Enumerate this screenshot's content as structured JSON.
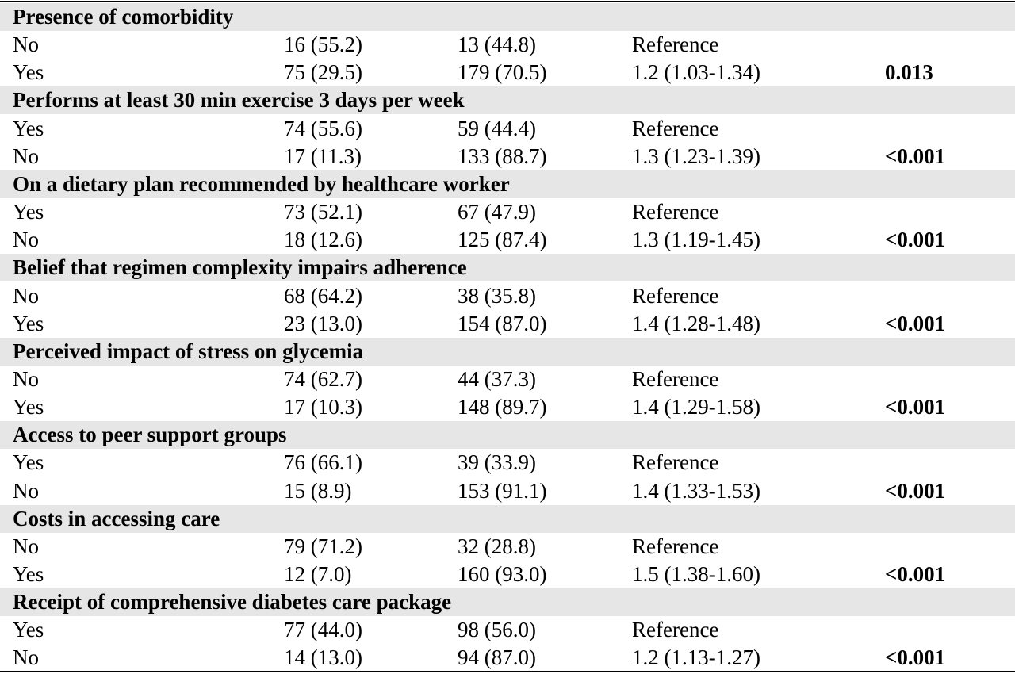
{
  "groups": [
    {
      "title": "Presence of comorbidity",
      "rows": [
        {
          "label": "No",
          "col1": "16 (55.2)",
          "col2": "13 (44.8)",
          "ratio": "Reference",
          "p": ""
        },
        {
          "label": "Yes",
          "col1": "75 (29.5)",
          "col2": "179 (70.5)",
          "ratio": "1.2 (1.03-1.34)",
          "p": "0.013"
        }
      ]
    },
    {
      "title": "Performs at least 30 min exercise 3 days per week",
      "rows": [
        {
          "label": "Yes",
          "col1": "74 (55.6)",
          "col2": "59 (44.4)",
          "ratio": "Reference",
          "p": ""
        },
        {
          "label": "No",
          "col1": "17 (11.3)",
          "col2": "133 (88.7)",
          "ratio": "1.3 (1.23-1.39)",
          "p": "<0.001"
        }
      ]
    },
    {
      "title": "On a dietary plan recommended by healthcare worker",
      "rows": [
        {
          "label": "Yes",
          "col1": "73 (52.1)",
          "col2": "67 (47.9)",
          "ratio": "Reference",
          "p": ""
        },
        {
          "label": "No",
          "col1": "18 (12.6)",
          "col2": "125 (87.4)",
          "ratio": "1.3 (1.19-1.45)",
          "p": "<0.001"
        }
      ]
    },
    {
      "title": "Belief that regimen complexity impairs adherence",
      "rows": [
        {
          "label": "No",
          "col1": "68 (64.2)",
          "col2": "38 (35.8)",
          "ratio": "Reference",
          "p": ""
        },
        {
          "label": "Yes",
          "col1": "23 (13.0)",
          "col2": "154 (87.0)",
          "ratio": "1.4 (1.28-1.48)",
          "p": "<0.001"
        }
      ]
    },
    {
      "title": "Perceived impact of stress on glycemia",
      "rows": [
        {
          "label": "No",
          "col1": "74 (62.7)",
          "col2": "44 (37.3)",
          "ratio": "Reference",
          "p": ""
        },
        {
          "label": "Yes",
          "col1": "17 (10.3)",
          "col2": "148 (89.7)",
          "ratio": "1.4 (1.29-1.58)",
          "p": "<0.001"
        }
      ]
    },
    {
      "title": "Access to peer support groups",
      "rows": [
        {
          "label": "Yes",
          "col1": "76 (66.1)",
          "col2": "39 (33.9)",
          "ratio": "Reference",
          "p": ""
        },
        {
          "label": "No",
          "col1": "15 (8.9)",
          "col2": "153 (91.1)",
          "ratio": "1.4 (1.33-1.53)",
          "p": "<0.001"
        }
      ]
    },
    {
      "title": "Costs in accessing care",
      "rows": [
        {
          "label": "No",
          "col1": "79 (71.2)",
          "col2": "32 (28.8)",
          "ratio": "Reference",
          "p": ""
        },
        {
          "label": "Yes",
          "col1": "12 (7.0)",
          "col2": "160 (93.0)",
          "ratio": "1.5 (1.38-1.60)",
          "p": "<0.001"
        }
      ]
    },
    {
      "title": "Receipt of comprehensive diabetes care package",
      "rows": [
        {
          "label": "Yes",
          "col1": "77 (44.0)",
          "col2": "98 (56.0)",
          "ratio": "Reference",
          "p": ""
        },
        {
          "label": "No",
          "col1": "14 (13.0)",
          "col2": "94 (87.0)",
          "ratio": "1.2 (1.13-1.27)",
          "p": "<0.001"
        }
      ]
    }
  ]
}
